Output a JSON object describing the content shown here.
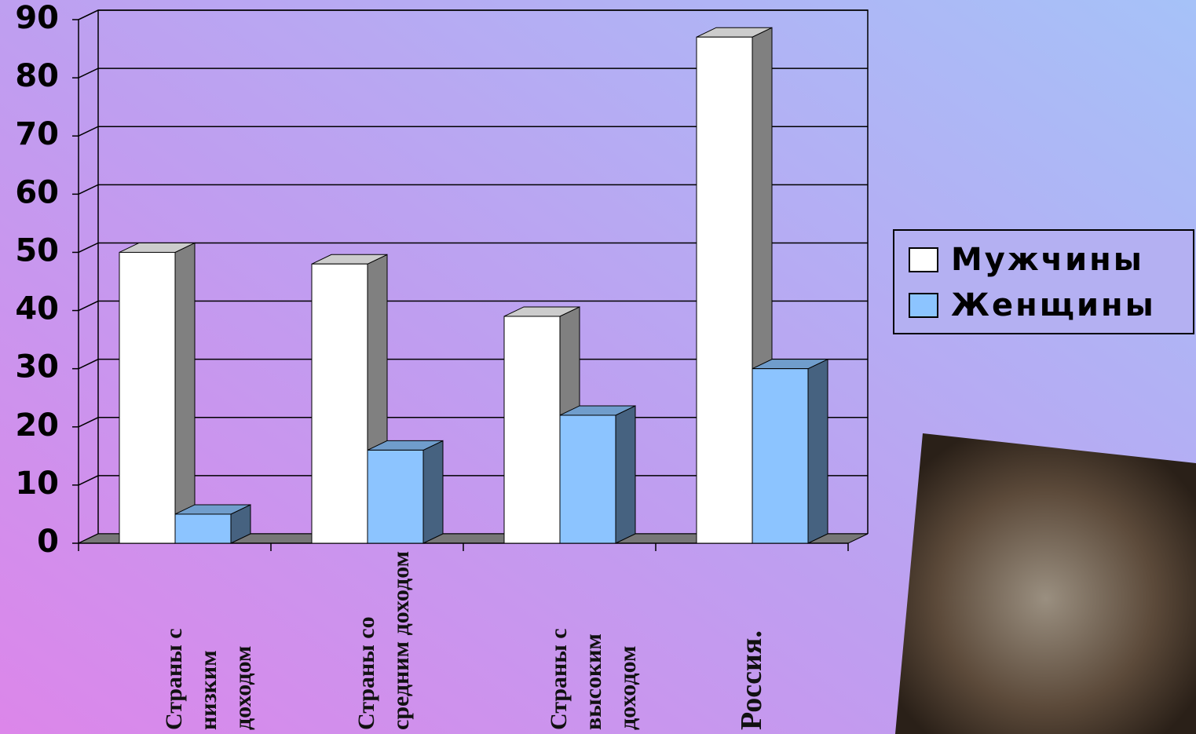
{
  "chart_data": {
    "type": "bar3d",
    "categories": [
      "Страны с\nнизким\nдоходом",
      "Страны со\nсредним доходом",
      "Страны с\nвысоким\nдоходом",
      "Россия."
    ],
    "series": [
      {
        "name": "Мужчины",
        "color": "#ffffff",
        "values": [
          50,
          48,
          39,
          87
        ]
      },
      {
        "name": "Женщины",
        "color": "#8cc4ff",
        "values": [
          5,
          16,
          22,
          30
        ]
      }
    ],
    "ylim": [
      0,
      90
    ],
    "yticks": [
      0,
      10,
      20,
      30,
      40,
      50,
      60,
      70,
      80,
      90
    ],
    "grid": true,
    "legend": "right"
  }
}
